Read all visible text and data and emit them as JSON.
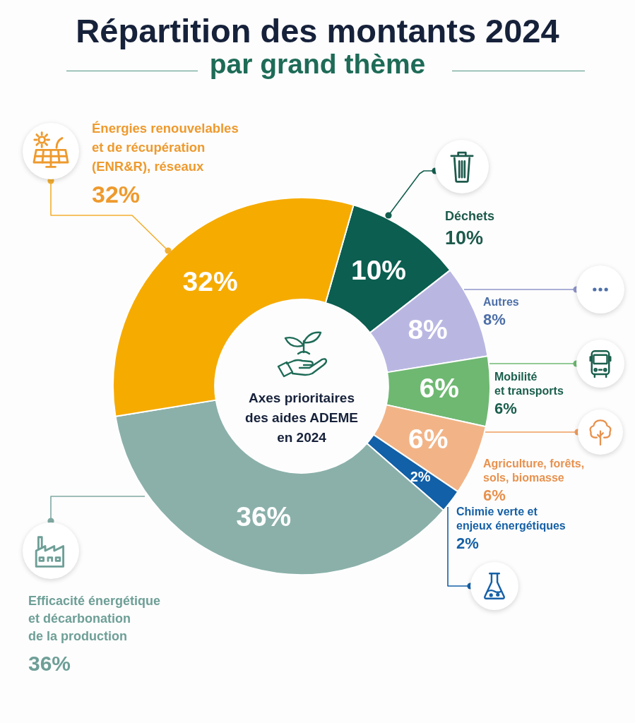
{
  "chart_data": {
    "type": "donut",
    "title": "Répartition des montants 2024",
    "subtitle": "par grand thème",
    "categories": [
      "Déchets",
      "Autres",
      "Mobilité\net transports",
      "Agriculture, forêts,\nsols, biomasse",
      "Chimie verte et\nenjeux énergétiques",
      "Efficacité énergétique\net décarbonation\nde la production",
      "Énergies renouvelables\net de récupération\n(ENR&R), réseaux"
    ],
    "values": [
      10,
      8,
      6,
      6,
      2,
      36,
      32
    ],
    "colors": [
      "#0b5e50",
      "#b9b7e2",
      "#6fb872",
      "#f2b487",
      "#1160a8",
      "#8bb0aa",
      "#f6ab00"
    ],
    "value_labels": [
      "10%",
      "8%",
      "6%",
      "6%",
      "2%",
      "36%",
      "32%"
    ],
    "annotations": [
      "Axes prioritaires\ndes aides ADEME\nen 2024"
    ]
  }
}
